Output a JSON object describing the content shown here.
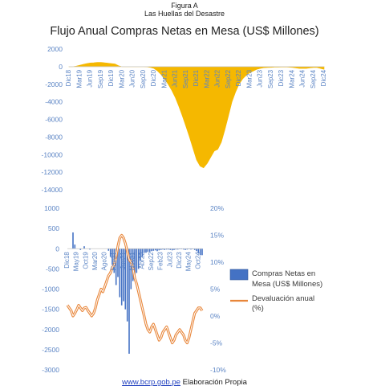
{
  "figure": {
    "label": "Figura A",
    "subtitle": "Las Huellas del Desastre",
    "source_link": "www.bcrp.gob.pe",
    "source_suffix": " Elaboración Propia"
  },
  "colors": {
    "area": "#f5b800",
    "bar": "#4472c4",
    "line": "#e8863a",
    "axis": "#5b84c4"
  },
  "chart_data": [
    {
      "type": "area",
      "title": "Flujo Anual Compras Netas en Mesa (US$ Millones)",
      "ylim": [
        -14000,
        2000
      ],
      "yticks": [
        2000,
        0,
        -2000,
        -4000,
        -6000,
        -8000,
        -10000,
        -12000,
        -14000
      ],
      "tick_labels": [
        "Dic18",
        "Mar19",
        "Jun19",
        "Sep19",
        "Dic19",
        "Mar20",
        "Jun20",
        "Sep20",
        "Dic20",
        "Mar21",
        "Jun21",
        "Sep21",
        "Dic21",
        "Mar22",
        "Jun22",
        "Sep22",
        "Dic22",
        "Mar23",
        "Jun23",
        "Sep23",
        "Dic23",
        "Mar24",
        "Jun24",
        "Sep24",
        "Dic24"
      ],
      "x": [
        "Dic18",
        "Ene19",
        "Feb19",
        "Mar19",
        "Abr19",
        "May19",
        "Jun19",
        "Jul19",
        "Ago19",
        "Sep19",
        "Oct19",
        "Nov19",
        "Dic19",
        "Ene20",
        "Feb20",
        "Mar20",
        "Abr20",
        "May20",
        "Jun20",
        "Jul20",
        "Ago20",
        "Sep20",
        "Oct20",
        "Nov20",
        "Dic20",
        "Ene21",
        "Feb21",
        "Mar21",
        "Abr21",
        "May21",
        "Jun21",
        "Jul21",
        "Ago21",
        "Sep21",
        "Oct21",
        "Nov21",
        "Dic21",
        "Ene22",
        "Feb22",
        "Mar22",
        "Abr22",
        "May22",
        "Jun22",
        "Jul22",
        "Ago22",
        "Sep22",
        "Oct22",
        "Nov22",
        "Dic22",
        "Ene23",
        "Feb23",
        "Mar23",
        "Abr23",
        "May23",
        "Jun23",
        "Jul23",
        "Ago23",
        "Sep23",
        "Oct23",
        "Nov23",
        "Dic23",
        "Ene24",
        "Feb24",
        "Mar24",
        "Abr24",
        "May24",
        "Jun24",
        "Jul24",
        "Ago24",
        "Sep24",
        "Oct24",
        "Nov24",
        "Dic24"
      ],
      "series": [
        {
          "values": [
            0,
            0,
            50,
            150,
            250,
            350,
            420,
            450,
            480,
            480,
            450,
            400,
            350,
            300,
            100,
            -10,
            -10,
            -10,
            -10,
            -10,
            -10,
            -10,
            -20,
            -80,
            -200,
            -500,
            -900,
            -1400,
            -2000,
            -2700,
            -3500,
            -4500,
            -5600,
            -6800,
            -8000,
            -9300,
            -10600,
            -11300,
            -11500,
            -11000,
            -10300,
            -9600,
            -9400,
            -8600,
            -7200,
            -5600,
            -4000,
            -2900,
            -2000,
            -1400,
            -1000,
            -700,
            -500,
            -300,
            -200,
            -120,
            -100,
            -80,
            -60,
            -50,
            -40,
            -30,
            -60,
            -80,
            -150,
            -200,
            -200,
            -200,
            -150,
            -100,
            -100,
            -200,
            -300
          ]
        }
      ]
    },
    {
      "type": "bar+line",
      "ylim": [
        -3000,
        1000
      ],
      "yticks": [
        1000,
        500,
        0,
        -500,
        -1000,
        -1500,
        -2000,
        -2500,
        -3000
      ],
      "y2lim": [
        -10,
        20
      ],
      "y2ticks": [
        "20%",
        "15%",
        "10%",
        "5%",
        "0%",
        "-5%",
        "-10%"
      ],
      "tick_labels": [
        "Dic18",
        "May19",
        "Oct19",
        "Mar20",
        "Ago20",
        "Ene21",
        "Jun21",
        "Nov21",
        "Abr22",
        "Sep22",
        "Feb23",
        "Jul23",
        "Dic23",
        "May24",
        "Oct24"
      ],
      "x": [
        "Dic18",
        "Ene19",
        "Feb19",
        "Mar19",
        "Abr19",
        "May19",
        "Jun19",
        "Jul19",
        "Ago19",
        "Sep19",
        "Oct19",
        "Nov19",
        "Dic19",
        "Ene20",
        "Feb20",
        "Mar20",
        "Abr20",
        "May20",
        "Jun20",
        "Jul20",
        "Ago20",
        "Sep20",
        "Oct20",
        "Nov20",
        "Dic20",
        "Ene21",
        "Feb21",
        "Mar21",
        "Abr21",
        "May21",
        "Jun21",
        "Jul21",
        "Ago21",
        "Sep21",
        "Oct21",
        "Nov21",
        "Dic21",
        "Ene22",
        "Feb22",
        "Mar22",
        "Abr22",
        "May22",
        "Jun22",
        "Jul22",
        "Ago22",
        "Sep22",
        "Oct22",
        "Nov22",
        "Dic22",
        "Ene23",
        "Feb23",
        "Mar23",
        "Abr23",
        "May23",
        "Jun23",
        "Jul23",
        "Ago23",
        "Sep23",
        "Oct23",
        "Nov23",
        "Dic23",
        "Ene24",
        "Feb24",
        "Mar24",
        "Abr24",
        "May24",
        "Jun24",
        "Jul24",
        "Ago24",
        "Sep24",
        "Oct24",
        "Nov24",
        "Dic24"
      ],
      "series": [
        {
          "name": "Compras Netas en Mesa (US$ Millones)",
          "kind": "bar",
          "axis": "left",
          "values": [
            0,
            0,
            0,
            400,
            100,
            0,
            0,
            -30,
            0,
            60,
            0,
            0,
            -20,
            0,
            0,
            0,
            0,
            0,
            0,
            0,
            0,
            0,
            -50,
            -200,
            -400,
            -600,
            -900,
            -700,
            -1200,
            -1400,
            -1300,
            -1500,
            -1800,
            -2600,
            -1000,
            -800,
            -700,
            -600,
            -500,
            -300,
            -200,
            -100,
            -100,
            -80,
            -80,
            -60,
            -50,
            -40,
            -60,
            -40,
            -30,
            -20,
            -30,
            -20,
            -20,
            -30,
            -40,
            -30,
            -20,
            -20,
            -10,
            -10,
            -20,
            -30,
            -20,
            -10,
            -20,
            -10,
            -30,
            -60,
            -100,
            -160,
            -160
          ]
        },
        {
          "name": "Devaluación anual (%)",
          "kind": "line",
          "axis": "right",
          "values": [
            2.0,
            1.5,
            1.0,
            0.0,
            0.5,
            1.2,
            2.0,
            1.5,
            1.0,
            1.5,
            1.6,
            1.0,
            0.5,
            0.0,
            0.5,
            1.5,
            3.0,
            4.0,
            5.0,
            4.5,
            5.5,
            6.5,
            7.5,
            8.0,
            9.0,
            9.5,
            11.0,
            13.0,
            14.5,
            15.0,
            14.5,
            13.5,
            12.0,
            10.5,
            10.0,
            9.0,
            7.0,
            6.0,
            4.5,
            3.0,
            1.5,
            0.0,
            -1.5,
            -2.5,
            -3.0,
            -2.0,
            -1.5,
            -2.5,
            -3.5,
            -4.5,
            -4.0,
            -3.0,
            -2.5,
            -2.0,
            -3.0,
            -4.0,
            -5.0,
            -4.5,
            -3.5,
            -3.0,
            -2.5,
            -3.0,
            -3.5,
            -4.5,
            -5.0,
            -4.0,
            -2.5,
            -1.0,
            0.5,
            1.0,
            1.5,
            1.5,
            1.0
          ]
        }
      ]
    }
  ]
}
